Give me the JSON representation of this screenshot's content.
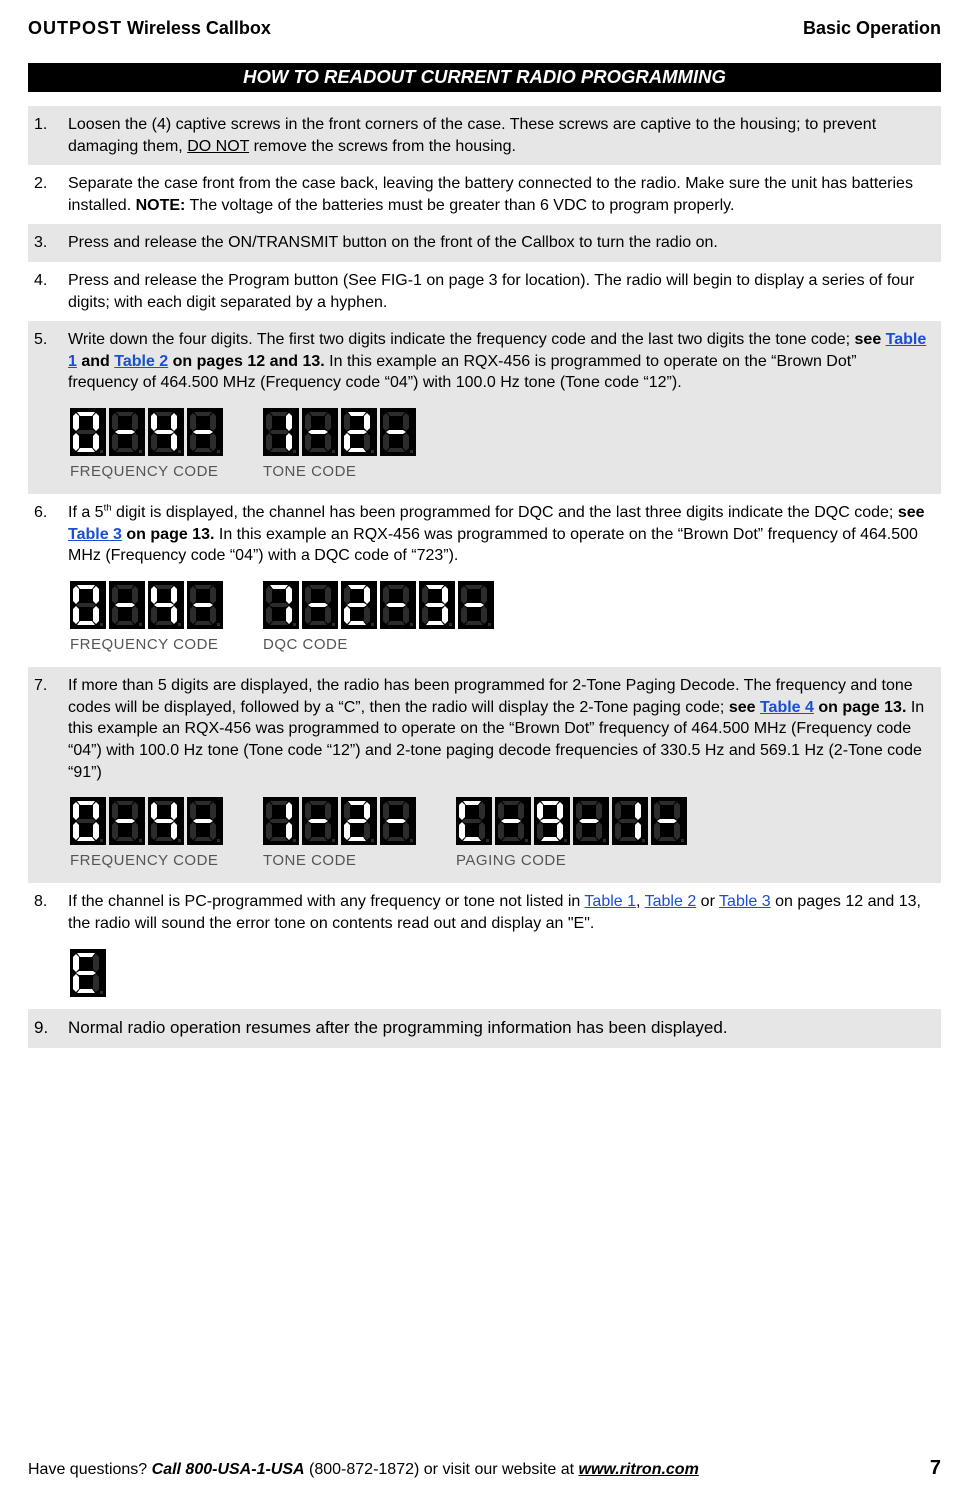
{
  "header": {
    "left_brand": "OUTPOST",
    "left_rest": " Wireless Callbox",
    "right": "Basic Operation"
  },
  "banner": "HOW TO READOUT CURRENT RADIO PROGRAMMING",
  "steps": {
    "s1": {
      "num": "1.",
      "pre": "Loosen the (4) captive screws in the front corners of the case.  These screws are captive to the housing; to prevent damaging them, ",
      "u": "DO NOT",
      "post": " remove the screws from the housing."
    },
    "s2": {
      "num": "2.",
      "pre": "Separate the case front from the case back, leaving the battery connected to the radio.  Make sure the unit has batteries installed.  ",
      "note_b": "NOTE:",
      "post": "  The voltage of the batteries must be greater than 6 VDC to program properly."
    },
    "s3": {
      "num": "3.",
      "text": "Press and release the ON/TRANSMIT button on the front of the Callbox to turn the radio on."
    },
    "s4": {
      "num": "4.",
      "text": "Press and release the Program button (See FIG-1 on page 3 for location).  The radio will begin to display a series of four digits; with each digit separated by a hyphen."
    },
    "s5": {
      "num": "5.",
      "pre": "Write down the four digits. The first two digits indicate the frequency code and the last two digits the tone code; ",
      "bold_pre": "see ",
      "link1": "Table 1",
      "mid1": " and ",
      "link2": "Table 2",
      "bold_post": " on pages 12 and 13.",
      "post": "   In this example an RQX-456 is programmed to operate on the “Brown Dot” frequency of 464.500 MHz (Frequency code “04”) with 100.0 Hz tone (Tone code “12”).",
      "freq_label": "FREQUENCY CODE",
      "tone_label": "TONE CODE"
    },
    "s6": {
      "num": "6.",
      "pre1": "If a 5",
      "sup": "th",
      "pre2": " digit is displayed, the channel has been programmed for DQC and the last three digits indicate the DQC code; ",
      "bold_pre": "see ",
      "link1": "Table 3",
      "bold_post": " on page 13.",
      "post": "  In this example an RQX-456 was programmed to operate on the “Brown Dot” frequency of 464.500 MHz (Frequency code “04”) with a DQC code of “723”).",
      "freq_label": "FREQUENCY CODE",
      "dqc_label": "DQC CODE"
    },
    "s7": {
      "num": "7.",
      "pre": "If more than 5 digits are displayed, the radio has been programmed for 2-Tone Paging Decode. The frequency and tone codes will be displayed, followed by a “C”, then the radio will display the 2-Tone paging code; ",
      "bold_pre": "see ",
      "link1": "Table 4",
      "bold_post": " on page 13.",
      "post": "     In this example an RQX-456 was programmed to operate on the “Brown Dot” frequency of 464.500 MHz (Frequency code “04”) with 100.0 Hz tone (Tone code “12”) and 2-tone paging decode frequencies of 330.5 Hz and 569.1 Hz (2-Tone code “91”)",
      "freq_label": "FREQUENCY CODE",
      "tone_label": "TONE CODE",
      "paging_label": "PAGING CODE"
    },
    "s8": {
      "num": "8.",
      "pre": "If the channel is PC-programmed with any frequency or tone not listed in ",
      "link1": "Table 1",
      "mid1": ", ",
      "link2": "Table 2",
      "mid2": " or ",
      "link3": "Table 3",
      "post": " on pages 12 and 13, the radio will sound the error tone on contents read out and display an \"E\"."
    },
    "s9": {
      "num": "9.",
      "text": "Normal radio operation resumes after the programming information has been displayed."
    }
  },
  "segments": {
    "seq5_freq": [
      "0",
      "-",
      "4",
      "-"
    ],
    "seq5_tone": [
      "1",
      "-",
      "2",
      "-"
    ],
    "seq6_freq": [
      "0",
      "-",
      "4",
      "-"
    ],
    "seq6_dqc": [
      "7",
      "-",
      "2",
      "-",
      "3",
      "-"
    ],
    "seq7_freq": [
      "0",
      "-",
      "4",
      "-"
    ],
    "seq7_tone": [
      "1",
      "-",
      "2",
      "-"
    ],
    "seq7_page": [
      "C",
      "-",
      "9",
      "-",
      "1",
      "-"
    ],
    "seq8_err": [
      "E"
    ]
  },
  "seven_seg": {
    "on_color": "#ffffff",
    "off_color": "#2c2c2c",
    "map": {
      "0": [
        1,
        1,
        1,
        1,
        1,
        1,
        0
      ],
      "1": [
        0,
        1,
        1,
        0,
        0,
        0,
        0
      ],
      "2": [
        1,
        1,
        0,
        1,
        1,
        0,
        1
      ],
      "3": [
        1,
        1,
        1,
        1,
        0,
        0,
        1
      ],
      "4": [
        0,
        1,
        1,
        0,
        0,
        1,
        1
      ],
      "5": [
        1,
        0,
        1,
        1,
        0,
        1,
        1
      ],
      "6": [
        1,
        0,
        1,
        1,
        1,
        1,
        1
      ],
      "7": [
        1,
        1,
        1,
        0,
        0,
        0,
        0
      ],
      "8": [
        1,
        1,
        1,
        1,
        1,
        1,
        1
      ],
      "9": [
        1,
        1,
        1,
        1,
        0,
        1,
        1
      ],
      "C": [
        1,
        0,
        0,
        1,
        1,
        1,
        0
      ],
      "E": [
        1,
        0,
        0,
        1,
        1,
        1,
        1
      ],
      "-": [
        0,
        0,
        0,
        0,
        0,
        0,
        1
      ]
    }
  },
  "footer": {
    "q": "Have questions?  ",
    "call_b": "Call 800-USA-1-USA",
    "mid": " (800-872-1872) or visit our website at ",
    "url": "www.ritron.com",
    "page": "7"
  }
}
